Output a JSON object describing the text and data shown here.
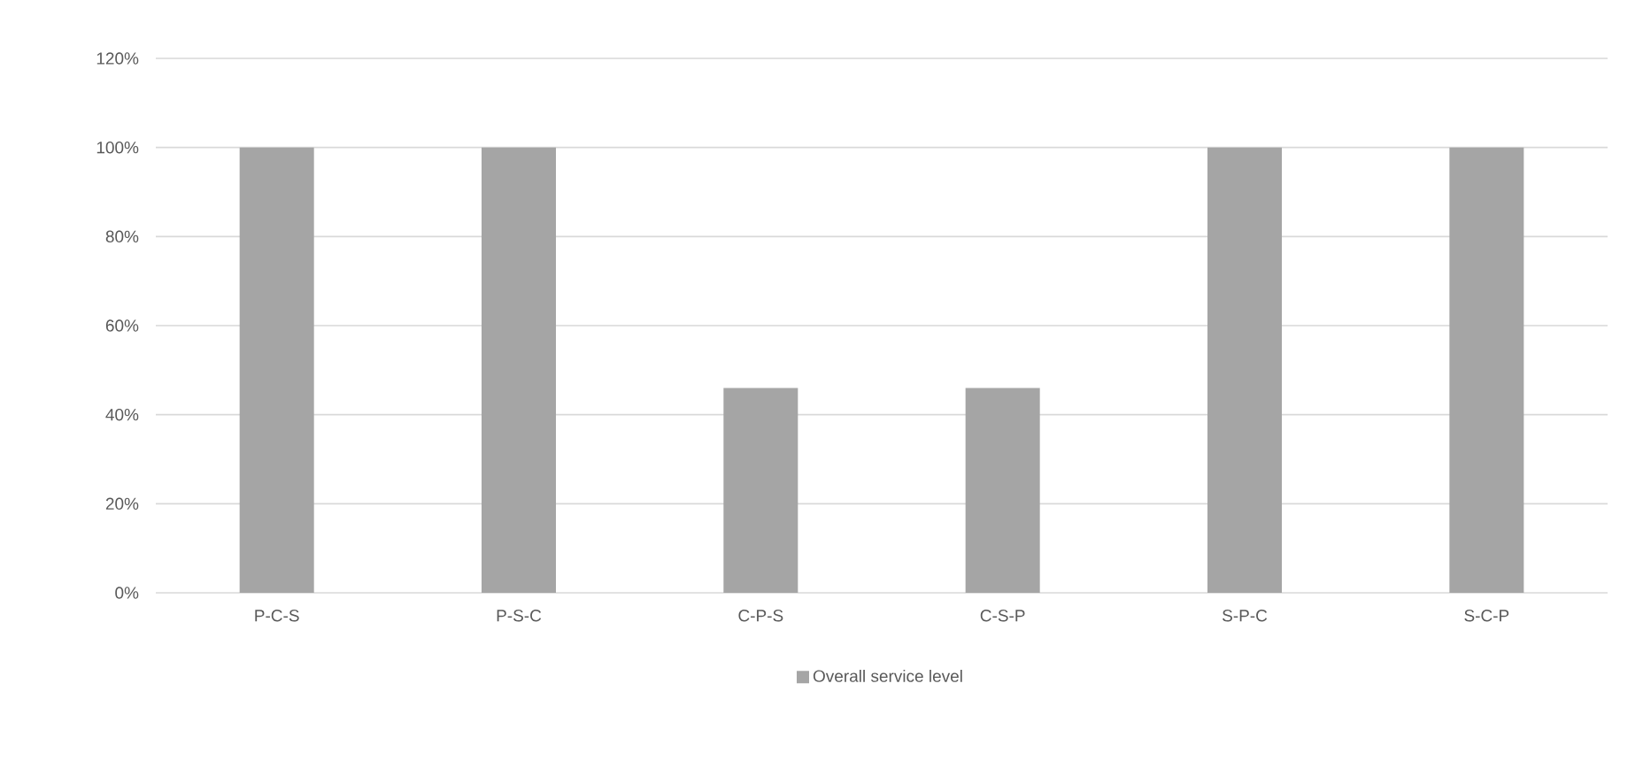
{
  "chart_data": {
    "type": "bar",
    "categories": [
      "P-C-S",
      "P-S-C",
      "C-P-S",
      "C-S-P",
      "S-P-C",
      "S-C-P"
    ],
    "series": [
      {
        "name": "Overall service level",
        "color": "#a5a5a5",
        "values": [
          100,
          100,
          46,
          46,
          100,
          100
        ]
      }
    ],
    "ylim": [
      0,
      120
    ],
    "yticks": [
      {
        "value": 0,
        "label": "0%"
      },
      {
        "value": 20,
        "label": "20%"
      },
      {
        "value": 40,
        "label": "40%"
      },
      {
        "value": 60,
        "label": "60%"
      },
      {
        "value": 80,
        "label": "80%"
      },
      {
        "value": 100,
        "label": "100%"
      },
      {
        "value": 120,
        "label": "120%"
      }
    ],
    "grid": "y",
    "legend": "bottom"
  }
}
